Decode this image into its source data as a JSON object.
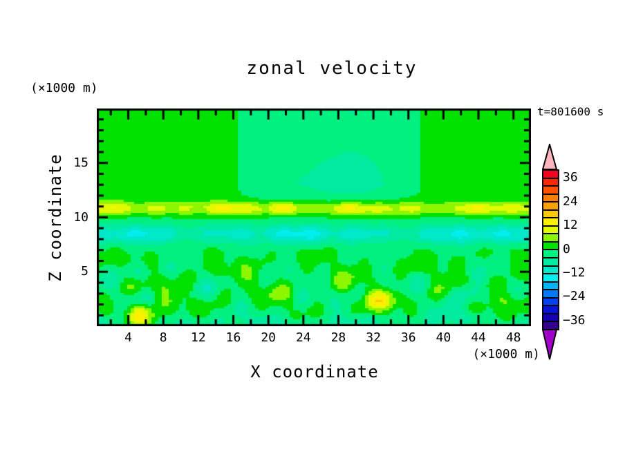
{
  "chart_data": {
    "type": "filled_contour",
    "title": "zonal velocity",
    "time_annotation": "t=801600 s",
    "x": {
      "label": "X coordinate",
      "unit": "(×1000 m)",
      "range": [
        0.4,
        50
      ],
      "major_ticks": [
        4,
        8,
        12,
        16,
        20,
        24,
        28,
        32,
        36,
        40,
        44,
        48
      ],
      "minor_step": 2
    },
    "z": {
      "label": "Z coordinate",
      "unit": "(×1000 m)",
      "range": [
        0,
        20
      ],
      "major_ticks": [
        5,
        10,
        15
      ],
      "major_step": 5,
      "minor_step": 1
    },
    "levels": {
      "min": -40,
      "max": 40,
      "step": 4,
      "tick_values": [
        36,
        24,
        12,
        0,
        -12,
        -24,
        -36
      ],
      "colors": [
        "#f50021",
        "#fa2800",
        "#ff5000",
        "#ff7d00",
        "#ffa000",
        "#ffc800",
        "#fff000",
        "#e1fa00",
        "#8cf500",
        "#00e100",
        "#00f080",
        "#00eba0",
        "#00e8c8",
        "#00eeee",
        "#00b4f5",
        "#0078fa",
        "#0041f0",
        "#0014dc",
        "#1400b4",
        "#32008c"
      ],
      "over_color": "#ffb4be",
      "under_color": "#a000c8"
    },
    "visible_features": [
      "broad weak flow near 0 (green/mint) above z=12",
      "positive jet band (chartreuse/yellow, +4..+14) near z=11",
      "negative layer band (turquoise/cyan, -4..-14) near z=8.5",
      "turbulent patches of both signs below z=7 with isolated yellow/gold maxima and cyan minima near the bottom"
    ],
    "field_model": {
      "cols": 126,
      "rows": 100,
      "upper": {
        "z_start": 10.6,
        "ramp": 2.4,
        "clamp": [
          -6.5,
          3.4
        ],
        "zmod": [
          0.75,
          0.25,
          0.55,
          1.2
        ],
        "harmonics": [
          [
            2.7,
            0.14,
            0.9
          ],
          [
            2.1,
            0.08,
            2.1
          ],
          [
            1.6,
            0.26,
            4.0
          ],
          [
            0.9,
            0.5,
            1.7
          ]
        ]
      },
      "jet": {
        "z0": 10.8,
        "width": 0.62,
        "base": 9.3,
        "harmonics": [
          [
            2.2,
            0.42,
            1.2
          ],
          [
            1.5,
            0.9,
            0.3
          ],
          [
            1.1,
            1.7,
            2.2
          ]
        ]
      },
      "shear": {
        "z0": 8.45,
        "width": 0.95,
        "base": 10.0,
        "harmonics": [
          [
            2.3,
            0.3,
            0.8
          ],
          [
            1.7,
            0.75,
            2.9
          ],
          [
            1.2,
            1.5,
            1.1
          ]
        ]
      },
      "turb": {
        "z0": 3.3,
        "width": 3.2,
        "waves": [
          [
            3.0,
            0.55,
            0.9,
            0.4
          ],
          [
            2.5,
            1.05,
            -1.3,
            2.0
          ],
          [
            2.0,
            1.8,
            0.7,
            4.1
          ],
          [
            1.6,
            0.33,
            -2.1,
            1.2
          ]
        ]
      },
      "bottom": {
        "width": 1.15,
        "base": 2.6,
        "harmonics": [
          [
            2.4,
            0.5,
            1.7
          ]
        ]
      },
      "bumps": [
        [
          15,
          5.3,
          1.5,
          1.0,
          1.0
        ],
        [
          9,
          33.0,
          1.9,
          2.3,
          0.9
        ],
        [
          8,
          47.6,
          1.6,
          2.6,
          0.9
        ],
        [
          5,
          21.5,
          1.4,
          10.9,
          0.5
        ],
        [
          -7,
          19.5,
          2.1,
          0.1,
          0.9
        ],
        [
          -6,
          0.6,
          1.5,
          0.3,
          0.8
        ],
        [
          -5,
          30.5,
          2.0,
          0.2,
          0.8
        ],
        [
          -8,
          43.0,
          2.1,
          3.0,
          1.0
        ],
        [
          -6,
          42.6,
          2.2,
          0.8,
          0.7
        ],
        [
          -6,
          5.2,
          1.7,
          4.8,
          0.8
        ]
      ]
    }
  }
}
